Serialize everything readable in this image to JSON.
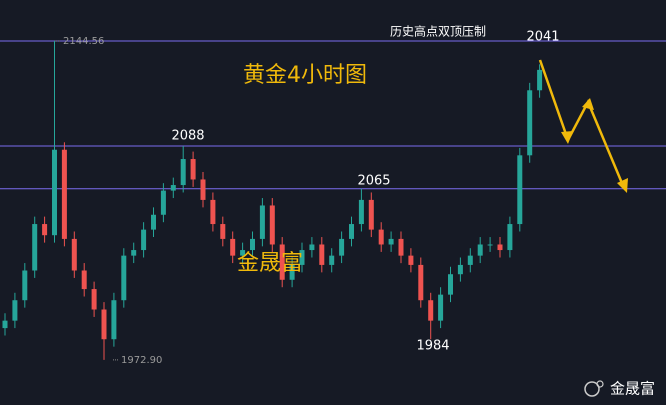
{
  "chart_data": {
    "type": "candlestick",
    "title": "黄金4小时图",
    "annotation": "历史高点双顶压制",
    "watermark": "金晟富",
    "brand": "金晟富",
    "ylim": [
      1948.6,
      2166.6
    ],
    "levels": [
      2144.56,
      2088,
      2065
    ],
    "level_color": "#7b6cf0",
    "up_color": "#26a69a",
    "down_color": "#ef5350",
    "peak_labels": [
      2088,
      2065,
      1984,
      2041
    ],
    "extreme_labels": [
      {
        "value": 2144.56,
        "label": "2144.56"
      },
      {
        "value": 1972.9,
        "label": "1972.90"
      }
    ],
    "open": [
      1990,
      1994,
      2005,
      2021,
      2046,
      2040,
      2086,
      2038,
      2021,
      2011,
      2000,
      1984,
      2005,
      2029,
      2032,
      2043,
      2051,
      2064,
      2067,
      2081,
      2070,
      2059,
      2046,
      2038,
      2029,
      2032,
      2038,
      2056,
      2035,
      2016,
      2024,
      2032,
      2035,
      2024,
      2029,
      2038,
      2046,
      2059,
      2043,
      2035,
      2038,
      2029,
      2024,
      2005,
      1994,
      2008,
      2019,
      2024,
      2029,
      2035,
      2035,
      2032,
      2046,
      2083,
      2118
    ],
    "high": [
      1998,
      2009,
      2025,
      2050,
      2050,
      2144.56,
      2090,
      2042,
      2025,
      2015,
      2004,
      2009,
      2033,
      2036,
      2047,
      2055,
      2068,
      2071,
      2088,
      2085,
      2074,
      2063,
      2050,
      2042,
      2036,
      2042,
      2060,
      2060,
      2039,
      2028,
      2036,
      2039,
      2039,
      2033,
      2042,
      2050,
      2065,
      2063,
      2047,
      2042,
      2042,
      2033,
      2028,
      2009,
      2012,
      2023,
      2028,
      2033,
      2039,
      2039,
      2039,
      2050,
      2087,
      2122,
      2132
    ],
    "low": [
      1986,
      1990,
      2001,
      2017,
      2036,
      2036,
      2034,
      2017,
      2007,
      1996,
      1972.9,
      1980,
      2001,
      2025,
      2028,
      2039,
      2047,
      2060,
      2063,
      2066,
      2055,
      2042,
      2034,
      2025,
      2025,
      2028,
      2034,
      2031,
      2012,
      2012,
      2020,
      2028,
      2020,
      2020,
      2025,
      2034,
      2042,
      2039,
      2031,
      2031,
      2025,
      2020,
      2001,
      1984,
      1990,
      2004,
      2015,
      2020,
      2025,
      2031,
      2028,
      2028,
      2042,
      2079,
      2114
    ],
    "close": [
      1994,
      2005,
      2021,
      2046,
      2040,
      2086,
      2038,
      2021,
      2011,
      2000,
      1984,
      2005,
      2029,
      2032,
      2043,
      2051,
      2064,
      2067,
      2081,
      2070,
      2059,
      2046,
      2038,
      2029,
      2032,
      2038,
      2056,
      2035,
      2016,
      2024,
      2032,
      2035,
      2024,
      2029,
      2038,
      2046,
      2059,
      2043,
      2035,
      2038,
      2029,
      2024,
      2005,
      1994,
      2008,
      2019,
      2024,
      2029,
      2035,
      2035,
      2032,
      2046,
      2083,
      2118,
      2129
    ]
  }
}
